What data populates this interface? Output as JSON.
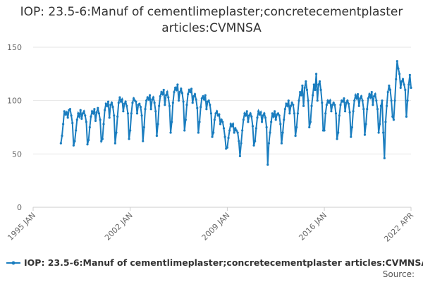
{
  "chart_data": {
    "type": "line",
    "title": "IOP: 23.5-6:Manuf of cementlimeplaster;concretecementplaster articles:CVMNSA",
    "source": "Source:",
    "ylim": [
      0,
      160
    ],
    "yticks": [
      0,
      50,
      100,
      150
    ],
    "grid": true,
    "xlim": [
      "1995 JAN",
      "2022 APR"
    ],
    "xticks": [
      "1995 JAN",
      "2002 JAN",
      "2009 JAN",
      "2016 JAN",
      "2022 APR"
    ],
    "x": [
      "1997 JAN",
      "1997 FEB",
      "1997 MAR",
      "1997 APR",
      "1997 MAY",
      "1997 JUN",
      "1997 JUL",
      "1997 AUG",
      "1997 SEP",
      "1997 OCT",
      "1997 NOV",
      "1997 DEC",
      "1998 JAN",
      "1998 FEB",
      "1998 MAR",
      "1998 APR",
      "1998 MAY",
      "1998 JUN",
      "1998 JUL",
      "1998 AUG",
      "1998 SEP",
      "1998 OCT",
      "1998 NOV",
      "1998 DEC",
      "1999 JAN",
      "1999 FEB",
      "1999 MAR",
      "1999 APR",
      "1999 MAY",
      "1999 JUN",
      "1999 JUL",
      "1999 AUG",
      "1999 SEP",
      "1999 OCT",
      "1999 NOV",
      "1999 DEC",
      "2000 JAN",
      "2000 FEB",
      "2000 MAR",
      "2000 APR",
      "2000 MAY",
      "2000 JUN",
      "2000 JUL",
      "2000 AUG",
      "2000 SEP",
      "2000 OCT",
      "2000 NOV",
      "2000 DEC",
      "2001 JAN",
      "2001 FEB",
      "2001 MAR",
      "2001 APR",
      "2001 MAY",
      "2001 JUN",
      "2001 JUL",
      "2001 AUG",
      "2001 SEP",
      "2001 OCT",
      "2001 NOV",
      "2001 DEC",
      "2002 JAN",
      "2002 FEB",
      "2002 MAR",
      "2002 APR",
      "2002 MAY",
      "2002 JUN",
      "2002 JUL",
      "2002 AUG",
      "2002 SEP",
      "2002 OCT",
      "2002 NOV",
      "2002 DEC",
      "2003 JAN",
      "2003 FEB",
      "2003 MAR",
      "2003 APR",
      "2003 MAY",
      "2003 JUN",
      "2003 JUL",
      "2003 AUG",
      "2003 SEP",
      "2003 OCT",
      "2003 NOV",
      "2003 DEC",
      "2004 JAN",
      "2004 FEB",
      "2004 MAR",
      "2004 APR",
      "2004 MAY",
      "2004 JUN",
      "2004 JUL",
      "2004 AUG",
      "2004 SEP",
      "2004 OCT",
      "2004 NOV",
      "2004 DEC",
      "2005 JAN",
      "2005 FEB",
      "2005 MAR",
      "2005 APR",
      "2005 MAY",
      "2005 JUN",
      "2005 JUL",
      "2005 AUG",
      "2005 SEP",
      "2005 OCT",
      "2005 NOV",
      "2005 DEC",
      "2006 JAN",
      "2006 FEB",
      "2006 MAR",
      "2006 APR",
      "2006 MAY",
      "2006 JUN",
      "2006 JUL",
      "2006 AUG",
      "2006 SEP",
      "2006 OCT",
      "2006 NOV",
      "2006 DEC",
      "2007 JAN",
      "2007 FEB",
      "2007 MAR",
      "2007 APR",
      "2007 MAY",
      "2007 JUN",
      "2007 JUL",
      "2007 AUG",
      "2007 SEP",
      "2007 OCT",
      "2007 NOV",
      "2007 DEC",
      "2008 JAN",
      "2008 FEB",
      "2008 MAR",
      "2008 APR",
      "2008 MAY",
      "2008 JUN",
      "2008 JUL",
      "2008 AUG",
      "2008 SEP",
      "2008 OCT",
      "2008 NOV",
      "2008 DEC",
      "2009 JAN",
      "2009 FEB",
      "2009 MAR",
      "2009 APR",
      "2009 MAY",
      "2009 JUN",
      "2009 JUL",
      "2009 AUG",
      "2009 SEP",
      "2009 OCT",
      "2009 NOV",
      "2009 DEC",
      "2010 JAN",
      "2010 FEB",
      "2010 MAR",
      "2010 APR",
      "2010 MAY",
      "2010 JUN",
      "2010 JUL",
      "2010 AUG",
      "2010 SEP",
      "2010 OCT",
      "2010 NOV",
      "2010 DEC",
      "2011 JAN",
      "2011 FEB",
      "2011 MAR",
      "2011 APR",
      "2011 MAY",
      "2011 JUN",
      "2011 JUL",
      "2011 AUG",
      "2011 SEP",
      "2011 OCT",
      "2011 NOV",
      "2011 DEC",
      "2012 JAN",
      "2012 FEB",
      "2012 MAR",
      "2012 APR",
      "2012 MAY",
      "2012 JUN",
      "2012 JUL",
      "2012 AUG",
      "2012 SEP",
      "2012 OCT",
      "2012 NOV",
      "2012 DEC",
      "2013 JAN",
      "2013 FEB",
      "2013 MAR",
      "2013 APR",
      "2013 MAY",
      "2013 JUN",
      "2013 JUL",
      "2013 AUG",
      "2013 SEP",
      "2013 OCT",
      "2013 NOV",
      "2013 DEC",
      "2014 JAN",
      "2014 FEB",
      "2014 MAR",
      "2014 APR",
      "2014 MAY",
      "2014 JUN",
      "2014 JUL",
      "2014 AUG",
      "2014 SEP",
      "2014 OCT",
      "2014 NOV",
      "2014 DEC",
      "2015 JAN",
      "2015 FEB",
      "2015 MAR",
      "2015 APR",
      "2015 MAY",
      "2015 JUN",
      "2015 JUL",
      "2015 AUG",
      "2015 SEP",
      "2015 OCT",
      "2015 NOV",
      "2015 DEC",
      "2016 JAN",
      "2016 FEB",
      "2016 MAR",
      "2016 APR",
      "2016 MAY",
      "2016 JUN",
      "2016 JUL",
      "2016 AUG",
      "2016 SEP",
      "2016 OCT",
      "2016 NOV",
      "2016 DEC",
      "2017 JAN",
      "2017 FEB",
      "2017 MAR",
      "2017 APR",
      "2017 MAY",
      "2017 JUN",
      "2017 JUL",
      "2017 AUG",
      "2017 SEP",
      "2017 OCT",
      "2017 NOV",
      "2017 DEC",
      "2018 JAN",
      "2018 FEB",
      "2018 MAR",
      "2018 APR",
      "2018 MAY",
      "2018 JUN",
      "2018 JUL",
      "2018 AUG",
      "2018 SEP",
      "2018 OCT",
      "2018 NOV",
      "2018 DEC",
      "2019 JAN",
      "2019 FEB",
      "2019 MAR",
      "2019 APR",
      "2019 MAY",
      "2019 JUN",
      "2019 JUL",
      "2019 AUG",
      "2019 SEP",
      "2019 OCT",
      "2019 NOV",
      "2019 DEC",
      "2020 JAN",
      "2020 FEB",
      "2020 MAR",
      "2020 APR",
      "2020 MAY",
      "2020 JUN",
      "2020 JUL",
      "2020 AUG",
      "2020 SEP",
      "2020 OCT",
      "2020 NOV",
      "2020 DEC",
      "2021 JAN",
      "2021 FEB",
      "2021 MAR",
      "2021 APR",
      "2021 MAY",
      "2021 JUN",
      "2021 JUL",
      "2021 AUG",
      "2021 SEP",
      "2021 OCT",
      "2021 NOV",
      "2021 DEC",
      "2022 JAN",
      "2022 FEB",
      "2022 MAR",
      "2022 APR"
    ],
    "series": [
      {
        "name": "IOP: 23.5-6:Manuf of cementlimeplaster;concretecementplaster articles:CVMNSA",
        "color": "#1a7dbf",
        "values": [
          60,
          67,
          78,
          90,
          87,
          89,
          84,
          91,
          92,
          86,
          79,
          58,
          62,
          72,
          82,
          88,
          85,
          91,
          83,
          88,
          90,
          86,
          80,
          59,
          63,
          75,
          85,
          90,
          88,
          92,
          81,
          89,
          93,
          88,
          82,
          62,
          64,
          78,
          91,
          97,
          95,
          99,
          84,
          96,
          98,
          94,
          86,
          60,
          70,
          85,
          98,
          103,
          99,
          101,
          90,
          97,
          99,
          95,
          88,
          64,
          72,
          88,
          98,
          102,
          100,
          99,
          88,
          96,
          97,
          94,
          86,
          62,
          75,
          92,
          100,
          103,
          101,
          105,
          92,
          101,
          103,
          98,
          90,
          67,
          78,
          95,
          104,
          108,
          106,
          110,
          96,
          105,
          108,
          103,
          95,
          70,
          80,
          98,
          108,
          112,
          110,
          115,
          100,
          108,
          111,
          107,
          99,
          72,
          82,
          96,
          106,
          110,
          108,
          111,
          98,
          104,
          106,
          101,
          93,
          70,
          80,
          94,
          102,
          104,
          101,
          105,
          92,
          99,
          100,
          96,
          88,
          66,
          70,
          82,
          88,
          90,
          86,
          87,
          78,
          82,
          80,
          74,
          66,
          55,
          56,
          65,
          72,
          78,
          76,
          78,
          70,
          74,
          72,
          70,
          62,
          48,
          60,
          72,
          82,
          88,
          86,
          90,
          80,
          86,
          88,
          85,
          76,
          58,
          62,
          74,
          84,
          90,
          87,
          89,
          80,
          86,
          88,
          84,
          75,
          40,
          60,
          70,
          80,
          88,
          85,
          90,
          82,
          87,
          88,
          86,
          78,
          60,
          70,
          82,
          92,
          97,
          95,
          100,
          88,
          95,
          98,
          96,
          88,
          67,
          75,
          88,
          100,
          108,
          105,
          114,
          95,
          112,
          118,
          110,
          100,
          75,
          80,
          95,
          105,
          115,
          110,
          125,
          100,
          115,
          118,
          110,
          98,
          72,
          72,
          88,
          96,
          100,
          98,
          100,
          90,
          96,
          98,
          96,
          88,
          64,
          70,
          86,
          96,
          100,
          99,
          102,
          90,
          98,
          100,
          97,
          89,
          66,
          75,
          90,
          100,
          105,
          102,
          106,
          95,
          102,
          104,
          100,
          92,
          68,
          78,
          92,
          102,
          106,
          103,
          108,
          96,
          104,
          106,
          100,
          92,
          70,
          78,
          95,
          100,
          70,
          46,
          80,
          95,
          108,
          114,
          110,
          100,
          85,
          82,
          100,
          120,
          137,
          130,
          125,
          112,
          118,
          120,
          115,
          110,
          85,
          100,
          115,
          124,
          112
        ]
      }
    ]
  }
}
